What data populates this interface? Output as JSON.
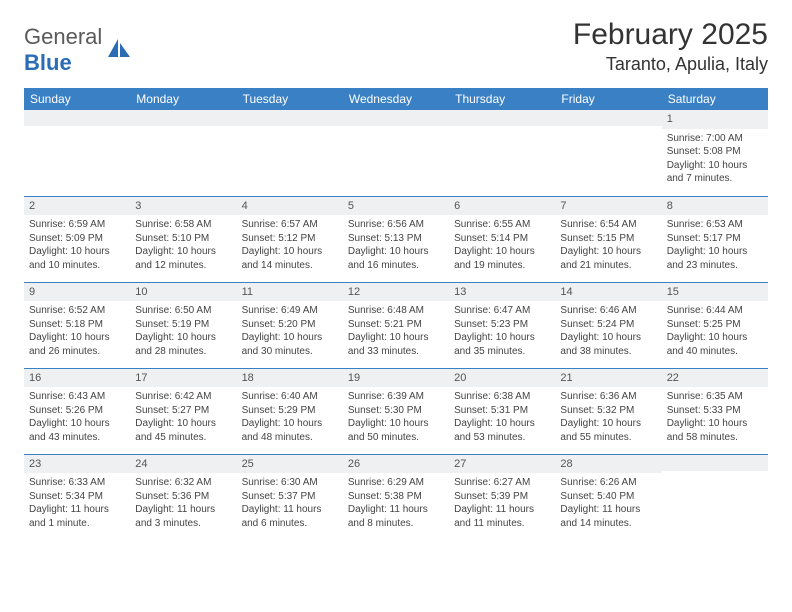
{
  "brand": {
    "word1": "General",
    "word2": "Blue"
  },
  "title": "February 2025",
  "location": "Taranto, Apulia, Italy",
  "colors": {
    "header_bg": "#3a80c4",
    "header_text": "#ffffff",
    "daynum_bg": "#eef0f1",
    "border": "#3a80c4",
    "brand_gray": "#5a5a5a",
    "brand_blue": "#2a6db5",
    "page_bg": "#ffffff",
    "body_text": "#444444"
  },
  "weekdays": [
    "Sunday",
    "Monday",
    "Tuesday",
    "Wednesday",
    "Thursday",
    "Friday",
    "Saturday"
  ],
  "weeks": [
    [
      {
        "n": "",
        "lines": []
      },
      {
        "n": "",
        "lines": []
      },
      {
        "n": "",
        "lines": []
      },
      {
        "n": "",
        "lines": []
      },
      {
        "n": "",
        "lines": []
      },
      {
        "n": "",
        "lines": []
      },
      {
        "n": "1",
        "lines": [
          "Sunrise: 7:00 AM",
          "Sunset: 5:08 PM",
          "Daylight: 10 hours and 7 minutes."
        ]
      }
    ],
    [
      {
        "n": "2",
        "lines": [
          "Sunrise: 6:59 AM",
          "Sunset: 5:09 PM",
          "Daylight: 10 hours and 10 minutes."
        ]
      },
      {
        "n": "3",
        "lines": [
          "Sunrise: 6:58 AM",
          "Sunset: 5:10 PM",
          "Daylight: 10 hours and 12 minutes."
        ]
      },
      {
        "n": "4",
        "lines": [
          "Sunrise: 6:57 AM",
          "Sunset: 5:12 PM",
          "Daylight: 10 hours and 14 minutes."
        ]
      },
      {
        "n": "5",
        "lines": [
          "Sunrise: 6:56 AM",
          "Sunset: 5:13 PM",
          "Daylight: 10 hours and 16 minutes."
        ]
      },
      {
        "n": "6",
        "lines": [
          "Sunrise: 6:55 AM",
          "Sunset: 5:14 PM",
          "Daylight: 10 hours and 19 minutes."
        ]
      },
      {
        "n": "7",
        "lines": [
          "Sunrise: 6:54 AM",
          "Sunset: 5:15 PM",
          "Daylight: 10 hours and 21 minutes."
        ]
      },
      {
        "n": "8",
        "lines": [
          "Sunrise: 6:53 AM",
          "Sunset: 5:17 PM",
          "Daylight: 10 hours and 23 minutes."
        ]
      }
    ],
    [
      {
        "n": "9",
        "lines": [
          "Sunrise: 6:52 AM",
          "Sunset: 5:18 PM",
          "Daylight: 10 hours and 26 minutes."
        ]
      },
      {
        "n": "10",
        "lines": [
          "Sunrise: 6:50 AM",
          "Sunset: 5:19 PM",
          "Daylight: 10 hours and 28 minutes."
        ]
      },
      {
        "n": "11",
        "lines": [
          "Sunrise: 6:49 AM",
          "Sunset: 5:20 PM",
          "Daylight: 10 hours and 30 minutes."
        ]
      },
      {
        "n": "12",
        "lines": [
          "Sunrise: 6:48 AM",
          "Sunset: 5:21 PM",
          "Daylight: 10 hours and 33 minutes."
        ]
      },
      {
        "n": "13",
        "lines": [
          "Sunrise: 6:47 AM",
          "Sunset: 5:23 PM",
          "Daylight: 10 hours and 35 minutes."
        ]
      },
      {
        "n": "14",
        "lines": [
          "Sunrise: 6:46 AM",
          "Sunset: 5:24 PM",
          "Daylight: 10 hours and 38 minutes."
        ]
      },
      {
        "n": "15",
        "lines": [
          "Sunrise: 6:44 AM",
          "Sunset: 5:25 PM",
          "Daylight: 10 hours and 40 minutes."
        ]
      }
    ],
    [
      {
        "n": "16",
        "lines": [
          "Sunrise: 6:43 AM",
          "Sunset: 5:26 PM",
          "Daylight: 10 hours and 43 minutes."
        ]
      },
      {
        "n": "17",
        "lines": [
          "Sunrise: 6:42 AM",
          "Sunset: 5:27 PM",
          "Daylight: 10 hours and 45 minutes."
        ]
      },
      {
        "n": "18",
        "lines": [
          "Sunrise: 6:40 AM",
          "Sunset: 5:29 PM",
          "Daylight: 10 hours and 48 minutes."
        ]
      },
      {
        "n": "19",
        "lines": [
          "Sunrise: 6:39 AM",
          "Sunset: 5:30 PM",
          "Daylight: 10 hours and 50 minutes."
        ]
      },
      {
        "n": "20",
        "lines": [
          "Sunrise: 6:38 AM",
          "Sunset: 5:31 PM",
          "Daylight: 10 hours and 53 minutes."
        ]
      },
      {
        "n": "21",
        "lines": [
          "Sunrise: 6:36 AM",
          "Sunset: 5:32 PM",
          "Daylight: 10 hours and 55 minutes."
        ]
      },
      {
        "n": "22",
        "lines": [
          "Sunrise: 6:35 AM",
          "Sunset: 5:33 PM",
          "Daylight: 10 hours and 58 minutes."
        ]
      }
    ],
    [
      {
        "n": "23",
        "lines": [
          "Sunrise: 6:33 AM",
          "Sunset: 5:34 PM",
          "Daylight: 11 hours and 1 minute."
        ]
      },
      {
        "n": "24",
        "lines": [
          "Sunrise: 6:32 AM",
          "Sunset: 5:36 PM",
          "Daylight: 11 hours and 3 minutes."
        ]
      },
      {
        "n": "25",
        "lines": [
          "Sunrise: 6:30 AM",
          "Sunset: 5:37 PM",
          "Daylight: 11 hours and 6 minutes."
        ]
      },
      {
        "n": "26",
        "lines": [
          "Sunrise: 6:29 AM",
          "Sunset: 5:38 PM",
          "Daylight: 11 hours and 8 minutes."
        ]
      },
      {
        "n": "27",
        "lines": [
          "Sunrise: 6:27 AM",
          "Sunset: 5:39 PM",
          "Daylight: 11 hours and 11 minutes."
        ]
      },
      {
        "n": "28",
        "lines": [
          "Sunrise: 6:26 AM",
          "Sunset: 5:40 PM",
          "Daylight: 11 hours and 14 minutes."
        ]
      },
      {
        "n": "",
        "lines": []
      }
    ]
  ]
}
